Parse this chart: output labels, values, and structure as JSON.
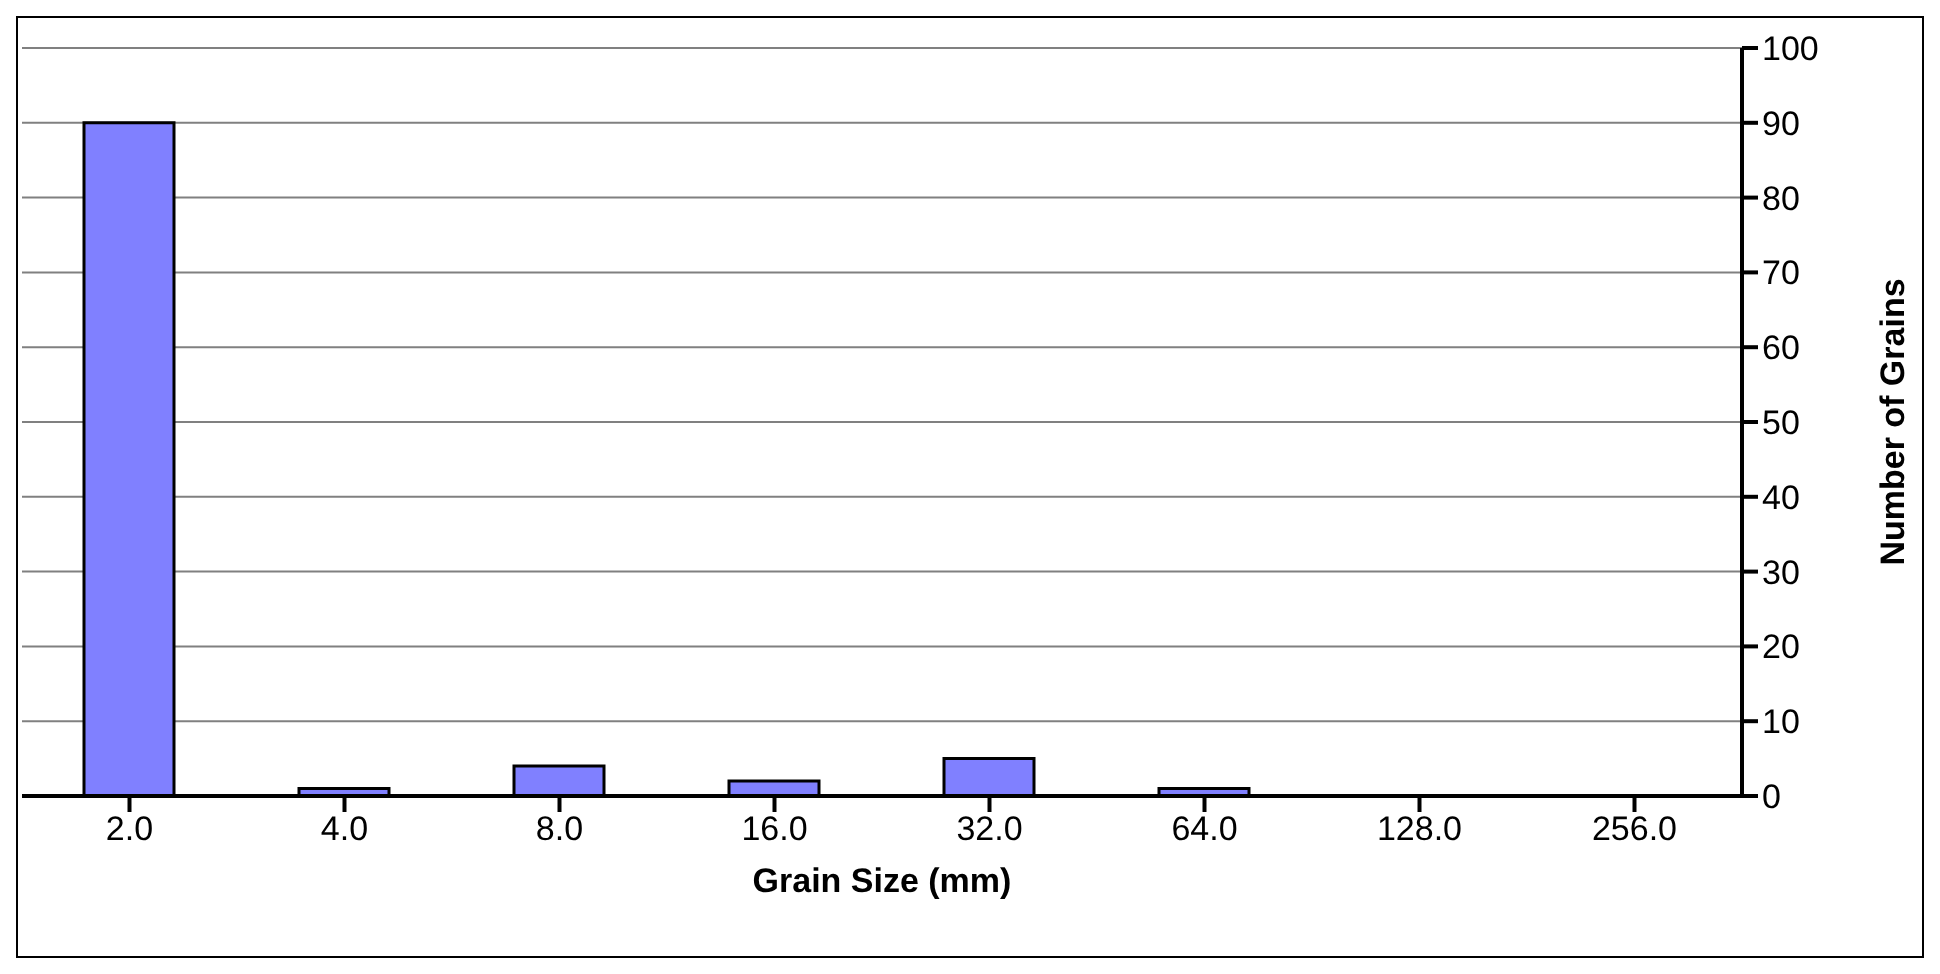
{
  "chart_data": {
    "type": "bar",
    "xlabel": "Grain Size (mm)",
    "ylabel": "Number of Grains",
    "categories": [
      "2.0",
      "4.0",
      "8.0",
      "16.0",
      "32.0",
      "64.0",
      "128.0",
      "256.0"
    ],
    "values": [
      90,
      1,
      4,
      2,
      5,
      1,
      0,
      0
    ],
    "color": "#8080ff",
    "ylim": [
      0,
      100
    ],
    "yticks": [
      0,
      10,
      20,
      30,
      40,
      50,
      60,
      70,
      80,
      90,
      100
    ],
    "grid": "y"
  }
}
